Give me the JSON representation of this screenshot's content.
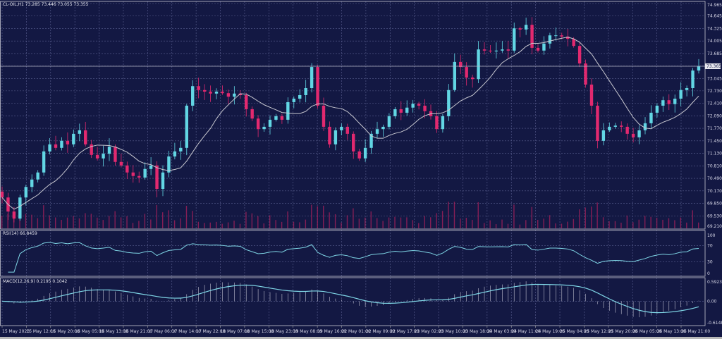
{
  "header": {
    "symbol_info": "CL-OIL,H1  73.285 73.446 73.055 73.355"
  },
  "current_price_label": "73.365",
  "colors": {
    "background": "#131843",
    "grid": "#5b6091",
    "bull": "#62d6e4",
    "bear": "#e2296f",
    "ma": "#c8c8d0",
    "volume": "#a0205a",
    "indicator": "#7fd6e6"
  },
  "chart_data": [
    {
      "type": "candlestick",
      "title": "CL-OIL,H1",
      "timeframe": "H1",
      "ylim": [
        69.21,
        74.965
      ],
      "y_ticks": [
        "74.965",
        "74.645",
        "74.325",
        "74.005",
        "73.685",
        "73.365",
        "73.045",
        "72.730",
        "72.410",
        "72.090",
        "71.770",
        "71.450",
        "71.130",
        "70.810",
        "70.490",
        "70.170",
        "69.850",
        "69.530",
        "69.210"
      ],
      "x_ticks": [
        "15 May 2023",
        "15 May 12:00",
        "15 May 20:00",
        "16 May 05:00",
        "16 May 13:00",
        "16 May 21:00",
        "17 May 06:00",
        "17 May 14:00",
        "17 May 22:00",
        "18 May 07:00",
        "18 May 15:00",
        "18 May 23:00",
        "19 May 08:00",
        "19 May 16:00",
        "22 May 01:00",
        "22 May 09:00",
        "22 May 17:00",
        "23 May 02:00",
        "23 May 10:00",
        "23 May 18:00",
        "24 May 03:00",
        "24 May 11:00",
        "24 May 19:00",
        "25 May 04:00",
        "25 May 12:00",
        "25 May 20:00",
        "26 May 05:00",
        "26 May 13:00",
        "26 May 21:00"
      ],
      "grid": true,
      "overlay": "moving average",
      "closes": [
        70.0,
        69.64,
        69.46,
        70.0,
        70.27,
        70.46,
        70.64,
        71.18,
        71.36,
        71.27,
        71.45,
        71.36,
        71.63,
        71.72,
        71.36,
        71.09,
        71.0,
        71.12,
        71.3,
        70.91,
        70.82,
        70.64,
        70.55,
        70.51,
        70.73,
        70.82,
        70.22,
        70.64,
        71.05,
        71.18,
        71.27,
        72.35,
        72.85,
        72.75,
        72.71,
        72.66,
        72.71,
        72.67,
        72.58,
        72.66,
        72.62,
        72.26,
        72.02,
        71.75,
        71.81,
        71.99,
        72.08,
        71.99,
        72.44,
        72.53,
        72.62,
        72.8,
        73.34,
        72.35,
        71.81,
        71.36,
        71.72,
        71.81,
        71.63,
        71.18,
        71.0,
        71.27,
        71.63,
        71.75,
        71.81,
        72.08,
        72.26,
        72.17,
        72.3,
        72.4,
        72.35,
        72.21,
        72.08,
        71.75,
        72.08,
        72.75,
        73.47,
        73.34,
        73.07,
        73.03,
        73.79,
        73.76,
        73.74,
        73.76,
        73.79,
        73.76,
        74.33,
        74.3,
        74.42,
        73.83,
        73.76,
        73.94,
        74.15,
        74.15,
        74.12,
        74.06,
        73.88,
        73.43,
        72.89,
        72.35,
        71.45,
        71.72,
        71.81,
        71.84,
        71.81,
        71.63,
        71.54,
        71.72,
        71.9,
        72.17,
        72.35,
        72.49,
        72.39,
        72.53,
        72.75,
        72.8,
        73.25,
        73.355
      ]
    },
    {
      "type": "line",
      "title": "RSI(14) 66.8459",
      "ylim": [
        0,
        100
      ],
      "y_ticks": [
        "100",
        "70",
        "30",
        "0"
      ],
      "levels": [
        70,
        30
      ]
    },
    {
      "type": "histogram+line",
      "title": "MACD(12,26,9) 0.2195 0.1042",
      "ylim": [
        -0.6148,
        0.5923
      ],
      "y_ticks": [
        "0.5923",
        "0.00",
        "-0.6148"
      ]
    }
  ]
}
